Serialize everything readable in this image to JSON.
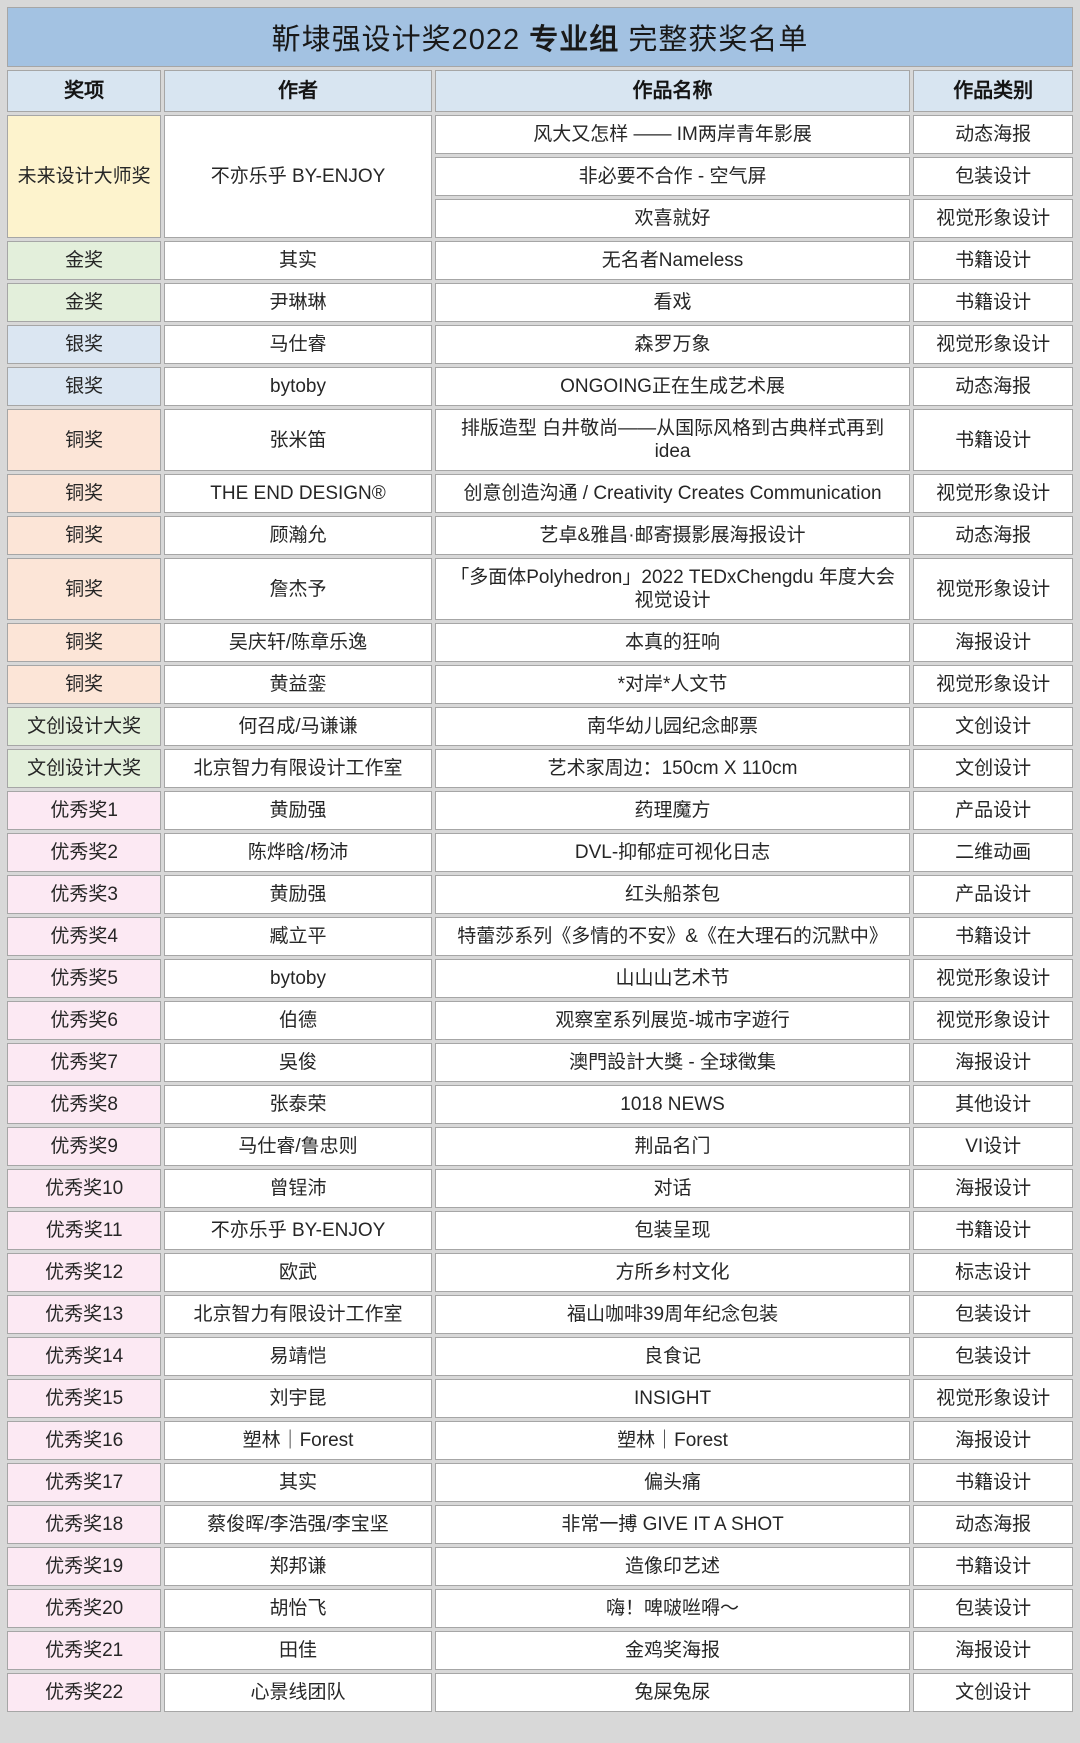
{
  "title": {
    "prefix": "靳埭强设计奖2022 ",
    "bold": "专业组",
    "suffix": " 完整获奖名单"
  },
  "colors": {
    "page_bg": "#d8d8d8",
    "title_bar_bg": "#a3c2e2",
    "header_bg": "#d8e5f1",
    "cell_bg": "#ffffff",
    "border": "#a6a6a6",
    "award_types": {
      "master": "#fdf3cd",
      "gold": "#e3efdb",
      "silver": "#dbe6f2",
      "bronze": "#fce5d7",
      "cultural": "#e3efdb",
      "excellent": "#fce9f3"
    }
  },
  "table": {
    "columns": [
      "奖项",
      "作者",
      "作品名称",
      "作品类别"
    ],
    "rows": [
      {
        "type": "master",
        "award": "未来设计大师奖",
        "span": 3,
        "author": "不亦乐乎 BY-ENJOY",
        "work": "风大又怎样 —— IM两岸青年影展",
        "category": "动态海报"
      },
      {
        "type": "master",
        "work": "非必要不合作 - 空气屏",
        "category": "包装设计"
      },
      {
        "type": "master",
        "work": "欢喜就好",
        "category": "视觉形象设计"
      },
      {
        "type": "gold",
        "award": "金奖",
        "author": "其实",
        "work": "无名者Nameless",
        "category": "书籍设计"
      },
      {
        "type": "gold",
        "award": "金奖",
        "author": "尹琳琳",
        "work": "看戏",
        "category": "书籍设计"
      },
      {
        "type": "silver",
        "award": "银奖",
        "author": "马仕睿",
        "work": "森罗万象",
        "category": "视觉形象设计"
      },
      {
        "type": "silver",
        "award": "银奖",
        "author": "bytoby",
        "work": "ONGOING正在生成艺术展",
        "category": "动态海报"
      },
      {
        "type": "bronze",
        "award": "铜奖",
        "author": "张米笛",
        "work": "排版造型 白井敬尚——从国际风格到古典样式再到idea",
        "category": "书籍设计"
      },
      {
        "type": "bronze",
        "award": "铜奖",
        "author": "THE END DESIGN®",
        "work": "创意创造沟通 / Creativity Creates Communication",
        "category": "视觉形象设计"
      },
      {
        "type": "bronze",
        "award": "铜奖",
        "author": "顾瀚允",
        "work": "艺卓&雅昌·邮寄摄影展海报设计",
        "category": "动态海报"
      },
      {
        "type": "bronze",
        "award": "铜奖",
        "author": "詹杰予",
        "work": "「多面体Polyhedron」2022 TEDxChengdu 年度大会视觉设计",
        "category": "视觉形象设计"
      },
      {
        "type": "bronze",
        "award": "铜奖",
        "author": "吴庆轩/陈章乐逸",
        "work": "本真的狂响",
        "category": "海报设计"
      },
      {
        "type": "bronze",
        "award": "铜奖",
        "author": "黄益銮",
        "work": "*对岸*人文节",
        "category": "视觉形象设计"
      },
      {
        "type": "cultural",
        "award": "文创设计大奖",
        "author": "何召成/马谦谦",
        "work": "南华幼儿园纪念邮票",
        "category": "文创设计"
      },
      {
        "type": "cultural",
        "award": "文创设计大奖",
        "author": "北京智力有限设计工作室",
        "work": "艺术家周边：150cm X 110cm",
        "category": "文创设计"
      },
      {
        "type": "excellent",
        "award": "优秀奖1",
        "author": "黄励强",
        "work": "药理魔方",
        "category": "产品设计"
      },
      {
        "type": "excellent",
        "award": "优秀奖2",
        "author": "陈烨晗/杨沛",
        "work": "DVL-抑郁症可视化日志",
        "category": "二维动画"
      },
      {
        "type": "excellent",
        "award": "优秀奖3",
        "author": "黄励强",
        "work": "红头船茶包",
        "category": "产品设计"
      },
      {
        "type": "excellent",
        "award": "优秀奖4",
        "author": "臧立平",
        "work": "特蕾莎系列《多情的不安》&《在大理石的沉默中》",
        "category": "书籍设计"
      },
      {
        "type": "excellent",
        "award": "优秀奖5",
        "author": "bytoby",
        "work": "山山山艺术节",
        "category": "视觉形象设计"
      },
      {
        "type": "excellent",
        "award": "优秀奖6",
        "author": "伯德",
        "work": "观察室系列展览-城市字遊行",
        "category": "视觉形象设计"
      },
      {
        "type": "excellent",
        "award": "优秀奖7",
        "author": "吳俊",
        "work": "澳門設計大獎 - 全球徵集",
        "category": "海报设计"
      },
      {
        "type": "excellent",
        "award": "优秀奖8",
        "author": "张泰荣",
        "work": "1018 NEWS",
        "category": "其他设计"
      },
      {
        "type": "excellent",
        "award": "优秀奖9",
        "author": "马仕睿/鲁忠则",
        "work": "荆品名门",
        "category": "VI设计"
      },
      {
        "type": "excellent",
        "award": "优秀奖10",
        "author": "曾锃沛",
        "work": "对话",
        "category": "海报设计"
      },
      {
        "type": "excellent",
        "award": "优秀奖11",
        "author": "不亦乐乎 BY-ENJOY",
        "work": "包装呈现",
        "category": "书籍设计"
      },
      {
        "type": "excellent",
        "award": "优秀奖12",
        "author": "欧武",
        "work": "方所乡村文化",
        "category": "标志设计"
      },
      {
        "type": "excellent",
        "award": "优秀奖13",
        "author": "北京智力有限设计工作室",
        "work": "福山咖啡39周年纪念包装",
        "category": "包装设计"
      },
      {
        "type": "excellent",
        "award": "优秀奖14",
        "author": "易靖恺",
        "work": "良食记",
        "category": "包装设计"
      },
      {
        "type": "excellent",
        "award": "优秀奖15",
        "author": "刘宇昆",
        "work": "INSIGHT",
        "category": "视觉形象设计"
      },
      {
        "type": "excellent",
        "award": "优秀奖16",
        "author": "塑林｜Forest",
        "work": "塑林｜Forest",
        "category": "海报设计"
      },
      {
        "type": "excellent",
        "award": "优秀奖17",
        "author": "其实",
        "work": "偏头痛",
        "category": "书籍设计"
      },
      {
        "type": "excellent",
        "award": "优秀奖18",
        "author": "蔡俊晖/李浩强/李宝坚",
        "work": "非常一搏 GIVE IT A SHOT",
        "category": "动态海报"
      },
      {
        "type": "excellent",
        "award": "优秀奖19",
        "author": "郑邦谦",
        "work": "造像印艺述",
        "category": "书籍设计"
      },
      {
        "type": "excellent",
        "award": "优秀奖20",
        "author": "胡怡飞",
        "work": "嗨！啤啵咝嘚～",
        "category": "包装设计"
      },
      {
        "type": "excellent",
        "award": "优秀奖21",
        "author": "田佳",
        "work": "金鸡奖海报",
        "category": "海报设计"
      },
      {
        "type": "excellent",
        "award": "优秀奖22",
        "author": "心景线团队",
        "work": "兔屎兔尿",
        "category": "文创设计"
      }
    ]
  }
}
